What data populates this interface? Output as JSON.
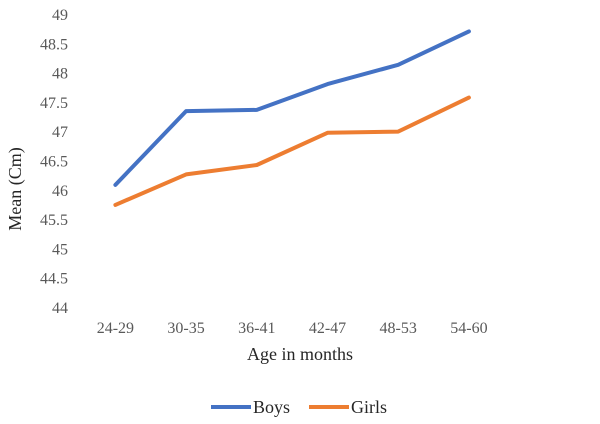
{
  "chart_data": {
    "type": "line",
    "title": "",
    "xlabel": "Age in months",
    "ylabel": "Mean (Cm)",
    "categories": [
      "24-29",
      "30-35",
      "36-41",
      "42-47",
      "48-53",
      "54-60"
    ],
    "ylim": [
      44,
      49
    ],
    "yticks": [
      44,
      44.5,
      45,
      45.5,
      46,
      46.5,
      47,
      47.5,
      48,
      48.5,
      49
    ],
    "grid": false,
    "legend_position": "bottom",
    "series": [
      {
        "name": "Boys",
        "color": "#4472C4",
        "values": [
          46.1,
          47.36,
          47.38,
          47.82,
          48.15,
          48.72
        ]
      },
      {
        "name": "Girls",
        "color": "#ED7D31",
        "values": [
          45.76,
          46.28,
          46.44,
          46.99,
          47.01,
          47.59
        ]
      }
    ]
  }
}
